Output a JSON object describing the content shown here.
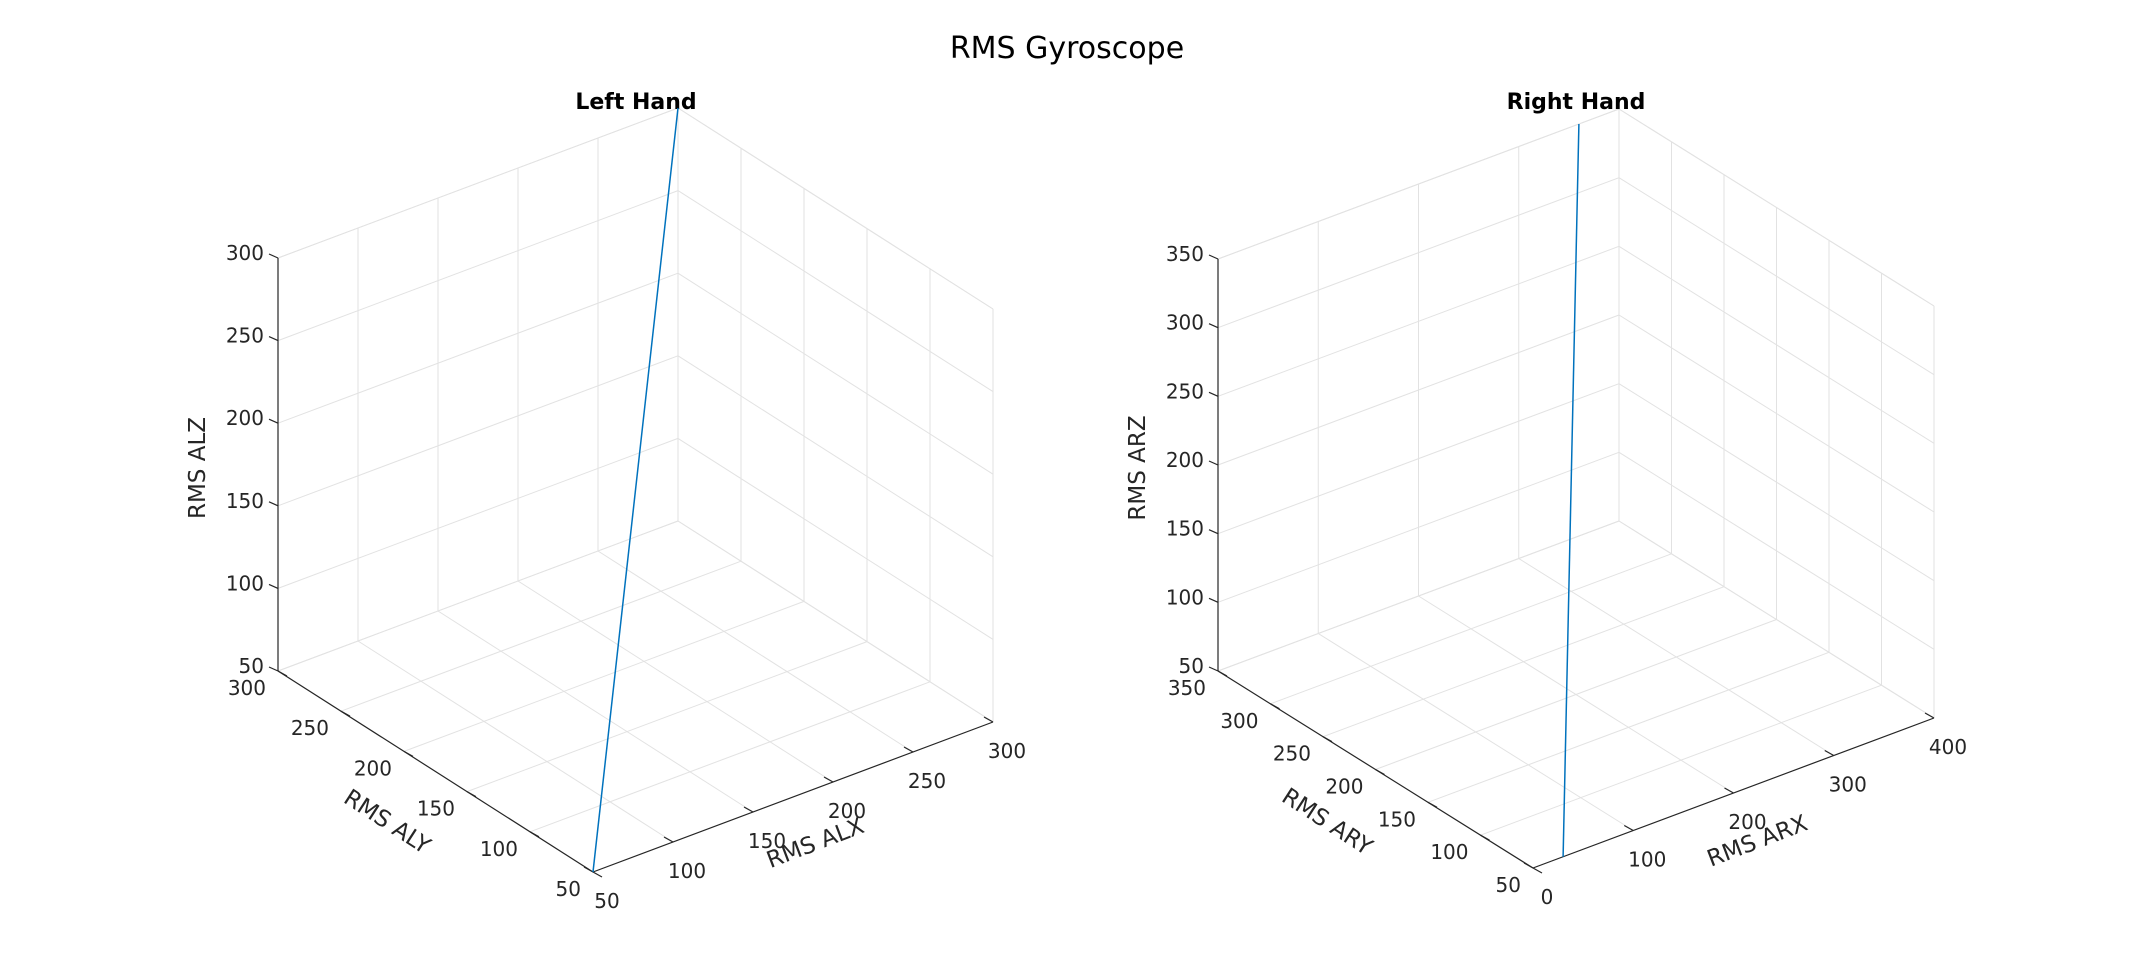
{
  "title": "RMS Gyroscope",
  "colors": {
    "series": "#0072BD",
    "grid": "#e2e2e2",
    "axis": "#262626"
  },
  "chart_data": [
    {
      "type": "line",
      "title": "Left Hand",
      "xlabel": "RMS ALX",
      "ylabel": "RMS ALY",
      "zlabel": "RMS ALZ",
      "xlim": [
        50,
        300
      ],
      "ylim": [
        50,
        300
      ],
      "zlim": [
        50,
        300
      ],
      "xticks": [
        50,
        100,
        150,
        200,
        250,
        300
      ],
      "yticks": [
        50,
        100,
        150,
        200,
        250,
        300
      ],
      "zticks": [
        50,
        100,
        150,
        200,
        250,
        300
      ],
      "grid": true,
      "series": [
        {
          "x": [
            50,
            300
          ],
          "y": [
            50,
            300
          ],
          "z": [
            50,
            300
          ]
        }
      ]
    },
    {
      "type": "line",
      "title": "Right Hand",
      "xlabel": "RMS ARX",
      "ylabel": "RMS ARY",
      "zlabel": "RMS ARZ",
      "xlim": [
        0,
        400
      ],
      "ylim": [
        50,
        350
      ],
      "zlim": [
        50,
        350
      ],
      "xticks": [
        0,
        100,
        200,
        300,
        400
      ],
      "yticks": [
        50,
        100,
        150,
        200,
        250,
        300,
        350
      ],
      "zticks": [
        50,
        100,
        150,
        200,
        250,
        300,
        350
      ],
      "grid": true,
      "series": [
        {
          "x": [
            30,
            360
          ],
          "y": [
            50,
            350
          ],
          "z": [
            50,
            350
          ]
        }
      ]
    }
  ]
}
